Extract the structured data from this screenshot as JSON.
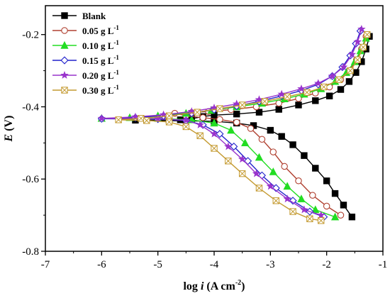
{
  "chart_data": {
    "type": "line",
    "title": "",
    "xlabel_main": "log ",
    "xlabel_var": "i",
    "xlabel_unit": " (A cm",
    "xlabel_exp": "-2",
    "xlabel_close": ")",
    "ylabel_var": "E",
    "ylabel_unit": " (V)",
    "xlim": [
      -7,
      -1
    ],
    "ylim": [
      -0.8,
      -0.12
    ],
    "xticks": [
      -7,
      -6,
      -5,
      -4,
      -3,
      -2,
      -1
    ],
    "xtick_labels": [
      "-7",
      "-6",
      "-5",
      "-4",
      "-3",
      "-2",
      "-1"
    ],
    "yticks": [
      -0.8,
      -0.6,
      -0.4,
      -0.2
    ],
    "ytick_labels": [
      "-0.8",
      "-0.6",
      "-0.4",
      "-0.2"
    ],
    "grid": false,
    "legend_position": "top-left",
    "series": [
      {
        "name": "Blank",
        "name_exp": "",
        "color": "#000000",
        "marker": "square-filled",
        "points": [
          [
            -1.24,
            -0.205
          ],
          [
            -1.3,
            -0.24
          ],
          [
            -1.38,
            -0.275
          ],
          [
            -1.48,
            -0.305
          ],
          [
            -1.6,
            -0.33
          ],
          [
            -1.75,
            -0.352
          ],
          [
            -1.95,
            -0.37
          ],
          [
            -2.2,
            -0.383
          ],
          [
            -2.5,
            -0.395
          ],
          [
            -2.85,
            -0.407
          ],
          [
            -3.2,
            -0.415
          ],
          [
            -3.6,
            -0.42
          ],
          [
            -4.0,
            -0.423
          ],
          [
            -4.2,
            -0.427
          ],
          [
            -4.4,
            -0.433
          ],
          [
            -4.6,
            -0.436
          ],
          [
            -4.8,
            -0.437
          ],
          [
            -5.2,
            -0.437
          ],
          [
            -5.4,
            -0.437
          ],
          [
            -4.0,
            -0.44
          ],
          [
            -3.6,
            -0.445
          ],
          [
            -3.3,
            -0.452
          ],
          [
            -3.0,
            -0.465
          ],
          [
            -2.8,
            -0.482
          ],
          [
            -2.6,
            -0.505
          ],
          [
            -2.4,
            -0.535
          ],
          [
            -2.2,
            -0.57
          ],
          [
            -2.0,
            -0.605
          ],
          [
            -1.85,
            -0.64
          ],
          [
            -1.7,
            -0.672
          ],
          [
            -1.55,
            -0.705
          ]
        ]
      },
      {
        "name": "0.05 g L",
        "name_exp": "-1",
        "color": "#b04030",
        "marker": "circle-open",
        "points": [
          [
            -1.3,
            -0.205
          ],
          [
            -1.38,
            -0.24
          ],
          [
            -1.47,
            -0.27
          ],
          [
            -1.6,
            -0.3
          ],
          [
            -1.75,
            -0.325
          ],
          [
            -1.95,
            -0.345
          ],
          [
            -2.2,
            -0.362
          ],
          [
            -2.5,
            -0.377
          ],
          [
            -2.85,
            -0.39
          ],
          [
            -3.25,
            -0.4
          ],
          [
            -3.7,
            -0.408
          ],
          [
            -4.1,
            -0.413
          ],
          [
            -4.4,
            -0.416
          ],
          [
            -4.7,
            -0.418
          ],
          [
            -4.5,
            -0.425
          ],
          [
            -4.2,
            -0.43
          ],
          [
            -3.9,
            -0.435
          ],
          [
            -3.6,
            -0.443
          ],
          [
            -3.35,
            -0.46
          ],
          [
            -3.15,
            -0.49
          ],
          [
            -2.95,
            -0.525
          ],
          [
            -2.75,
            -0.565
          ],
          [
            -2.5,
            -0.605
          ],
          [
            -2.25,
            -0.645
          ],
          [
            -2.0,
            -0.675
          ],
          [
            -1.75,
            -0.7
          ]
        ]
      },
      {
        "name": "0.10 g L",
        "name_exp": "-1",
        "color": "#22dd22",
        "marker": "triangle-filled",
        "points": [
          [
            -1.3,
            -0.21
          ],
          [
            -1.4,
            -0.245
          ],
          [
            -1.5,
            -0.275
          ],
          [
            -1.65,
            -0.305
          ],
          [
            -1.85,
            -0.33
          ],
          [
            -2.1,
            -0.35
          ],
          [
            -2.4,
            -0.365
          ],
          [
            -2.75,
            -0.378
          ],
          [
            -3.15,
            -0.39
          ],
          [
            -3.6,
            -0.4
          ],
          [
            -4.05,
            -0.41
          ],
          [
            -4.5,
            -0.418
          ],
          [
            -5.0,
            -0.425
          ],
          [
            -5.5,
            -0.43
          ],
          [
            -6.0,
            -0.432
          ],
          [
            -5.0,
            -0.432
          ],
          [
            -4.4,
            -0.436
          ],
          [
            -4.0,
            -0.445
          ],
          [
            -3.7,
            -0.465
          ],
          [
            -3.45,
            -0.5
          ],
          [
            -3.2,
            -0.54
          ],
          [
            -2.95,
            -0.58
          ],
          [
            -2.7,
            -0.62
          ],
          [
            -2.45,
            -0.655
          ],
          [
            -2.2,
            -0.685
          ],
          [
            -1.85,
            -0.705
          ]
        ]
      },
      {
        "name": "0.15 g L",
        "name_exp": "-1",
        "color": "#2222cc",
        "marker": "diamond-open",
        "points": [
          [
            -1.4,
            -0.19
          ],
          [
            -1.48,
            -0.225
          ],
          [
            -1.58,
            -0.258
          ],
          [
            -1.72,
            -0.29
          ],
          [
            -1.9,
            -0.315
          ],
          [
            -2.15,
            -0.338
          ],
          [
            -2.45,
            -0.355
          ],
          [
            -2.8,
            -0.37
          ],
          [
            -3.2,
            -0.385
          ],
          [
            -3.6,
            -0.398
          ],
          [
            -4.0,
            -0.408
          ],
          [
            -4.4,
            -0.418
          ],
          [
            -4.9,
            -0.425
          ],
          [
            -5.4,
            -0.43
          ],
          [
            -6.0,
            -0.433
          ],
          [
            -5.0,
            -0.434
          ],
          [
            -4.5,
            -0.438
          ],
          [
            -4.2,
            -0.45
          ],
          [
            -3.9,
            -0.475
          ],
          [
            -3.65,
            -0.51
          ],
          [
            -3.4,
            -0.55
          ],
          [
            -3.15,
            -0.59
          ],
          [
            -2.9,
            -0.625
          ],
          [
            -2.6,
            -0.66
          ],
          [
            -2.3,
            -0.69
          ],
          [
            -2.05,
            -0.705
          ]
        ]
      },
      {
        "name": "0.20 g L",
        "name_exp": "-1",
        "color": "#9933cc",
        "marker": "star-filled",
        "points": [
          [
            -1.38,
            -0.185
          ],
          [
            -1.45,
            -0.22
          ],
          [
            -1.55,
            -0.255
          ],
          [
            -1.7,
            -0.29
          ],
          [
            -1.9,
            -0.315
          ],
          [
            -2.15,
            -0.335
          ],
          [
            -2.45,
            -0.35
          ],
          [
            -2.8,
            -0.365
          ],
          [
            -3.2,
            -0.38
          ],
          [
            -3.6,
            -0.392
          ],
          [
            -4.0,
            -0.403
          ],
          [
            -4.4,
            -0.413
          ],
          [
            -4.9,
            -0.422
          ],
          [
            -5.4,
            -0.428
          ],
          [
            -6.0,
            -0.432
          ],
          [
            -5.0,
            -0.433
          ],
          [
            -4.5,
            -0.437
          ],
          [
            -4.25,
            -0.45
          ],
          [
            -4.0,
            -0.475
          ],
          [
            -3.75,
            -0.51
          ],
          [
            -3.5,
            -0.545
          ],
          [
            -3.25,
            -0.585
          ],
          [
            -3.0,
            -0.62
          ],
          [
            -2.7,
            -0.655
          ],
          [
            -2.4,
            -0.685
          ],
          [
            -2.1,
            -0.7
          ]
        ]
      },
      {
        "name": "0.30 g L",
        "name_exp": "-1",
        "color": "#c49a30",
        "marker": "xsquare-open",
        "points": [
          [
            -1.28,
            -0.2
          ],
          [
            -1.35,
            -0.235
          ],
          [
            -1.45,
            -0.27
          ],
          [
            -1.58,
            -0.3
          ],
          [
            -1.78,
            -0.325
          ],
          [
            -2.05,
            -0.345
          ],
          [
            -2.35,
            -0.36
          ],
          [
            -2.7,
            -0.372
          ],
          [
            -3.1,
            -0.385
          ],
          [
            -3.5,
            -0.395
          ],
          [
            -3.9,
            -0.405
          ],
          [
            -4.3,
            -0.415
          ],
          [
            -4.8,
            -0.425
          ],
          [
            -5.3,
            -0.432
          ],
          [
            -5.7,
            -0.436
          ],
          [
            -5.2,
            -0.438
          ],
          [
            -4.8,
            -0.442
          ],
          [
            -4.5,
            -0.455
          ],
          [
            -4.25,
            -0.48
          ],
          [
            -4.0,
            -0.515
          ],
          [
            -3.75,
            -0.55
          ],
          [
            -3.5,
            -0.585
          ],
          [
            -3.2,
            -0.625
          ],
          [
            -2.9,
            -0.66
          ],
          [
            -2.6,
            -0.69
          ],
          [
            -2.3,
            -0.71
          ],
          [
            -2.1,
            -0.715
          ]
        ]
      }
    ]
  }
}
